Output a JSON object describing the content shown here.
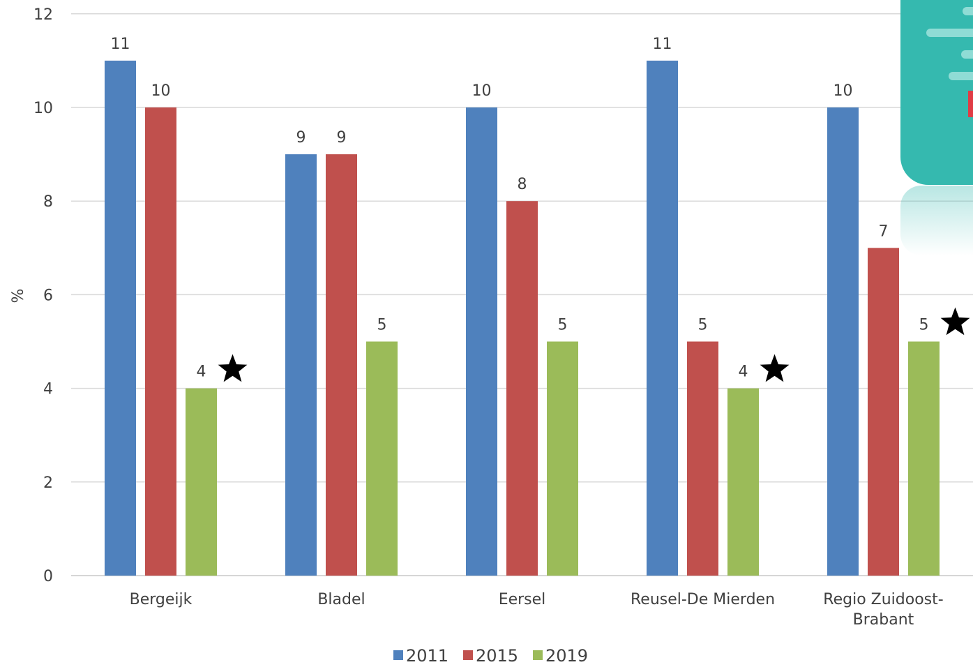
{
  "chart_data": {
    "type": "bar",
    "title": "",
    "xlabel": "",
    "ylabel": "%",
    "ylim": [
      0,
      12
    ],
    "yticks": [
      0,
      2,
      4,
      6,
      8,
      10,
      12
    ],
    "grid": true,
    "legend": "bottom",
    "categories": [
      [
        "Bergeijk"
      ],
      [
        "Bladel"
      ],
      [
        "Eersel"
      ],
      [
        "Reusel-De Mierden"
      ],
      [
        "Regio Zuidoost-",
        "Brabant"
      ]
    ],
    "series": [
      {
        "name": "2011",
        "color": "#4F81BD",
        "values": [
          11,
          9,
          10,
          11,
          10
        ]
      },
      {
        "name": "2015",
        "color": "#C0504D",
        "values": [
          10,
          9,
          8,
          5,
          7
        ]
      },
      {
        "name": "2019",
        "color": "#9BBB59",
        "values": [
          4,
          5,
          5,
          4,
          5
        ]
      }
    ],
    "annotations": [
      {
        "category": 0,
        "series": 2,
        "symbol": "star"
      },
      {
        "category": 3,
        "series": 2,
        "symbol": "star"
      },
      {
        "category": 4,
        "series": 2,
        "symbol": "star"
      }
    ]
  },
  "decoration": {
    "name": "teal-logo-graphic",
    "color": "#35B9AF",
    "accent": "#E03C45"
  }
}
